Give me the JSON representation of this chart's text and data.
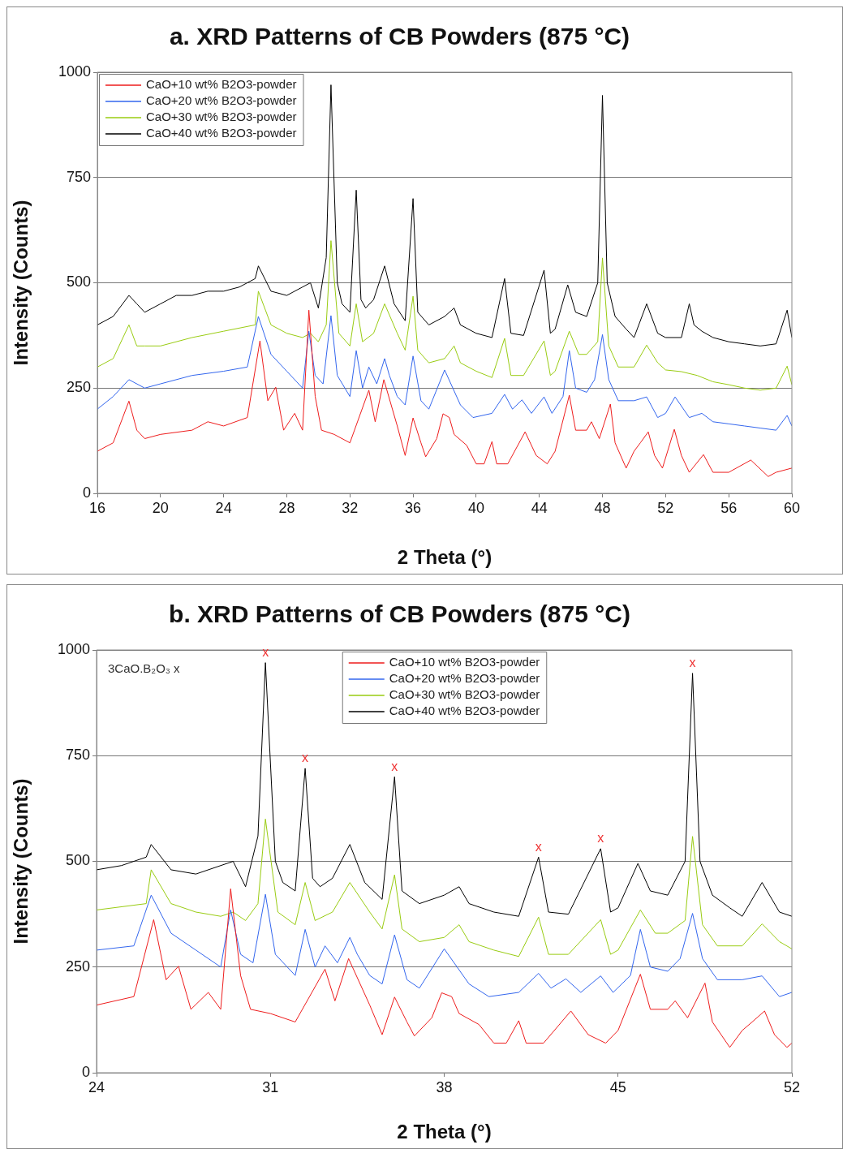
{
  "chart_data": [
    {
      "type": "line",
      "title": "a. XRD Patterns of CB Powders (875 °C)",
      "xlabel": "2 Theta (°)",
      "ylabel": "Intensity (Counts)",
      "xlim": [
        16,
        60
      ],
      "xticks": [
        16,
        20,
        24,
        28,
        32,
        36,
        40,
        44,
        48,
        52,
        56,
        60
      ],
      "ylim": [
        0,
        1000
      ],
      "yticks": [
        0,
        250,
        500,
        750,
        1000
      ],
      "grid": "y",
      "legend": "top left",
      "marker": "none",
      "series": [
        {
          "name": "CaO+10 wt% B2O3-powder",
          "color": "#ee1c1c",
          "x": [
            16,
            17,
            18,
            18.5,
            19,
            20,
            22,
            23,
            24,
            25.5,
            26.3,
            26.8,
            27.3,
            27.8,
            28.5,
            29,
            29.4,
            29.8,
            30.2,
            31,
            32,
            33.2,
            33.6,
            34.15,
            35,
            35.5,
            36,
            36.5,
            36.8,
            37.5,
            37.9,
            38.3,
            38.6,
            39.4,
            40,
            40.5,
            41,
            41.3,
            42,
            43.1,
            43.8,
            44.5,
            45,
            45.9,
            46.3,
            47,
            47.3,
            47.8,
            48.5,
            48.8,
            49.5,
            50,
            50.4,
            50.9,
            51.3,
            51.8,
            52.55,
            53,
            53.5,
            54.4,
            55,
            56,
            57.4,
            58.5,
            59,
            60
          ],
          "values": [
            100,
            120,
            219,
            150,
            130,
            140,
            150,
            170,
            160,
            180,
            362,
            220,
            252,
            150,
            190,
            150,
            435,
            230,
            150,
            140,
            120,
            245,
            170,
            270,
            160,
            90,
            179,
            120,
            87,
            130,
            189,
            180,
            140,
            114,
            70,
            70,
            123,
            70,
            70,
            146,
            90,
            70,
            100,
            233,
            150,
            150,
            170,
            130,
            212,
            120,
            60,
            100,
            120,
            146,
            90,
            60,
            152,
            90,
            50,
            92,
            50,
            50,
            79,
            40,
            50,
            60
          ]
        },
        {
          "name": "CaO+20 wt% B2O3-powder",
          "color": "#3366ee",
          "x": [
            16,
            17,
            18,
            19,
            20,
            22,
            24,
            25.5,
            26.2,
            27,
            28,
            29,
            29.4,
            29.8,
            30.3,
            30.8,
            31.2,
            32,
            32.4,
            32.8,
            33.2,
            33.7,
            34.2,
            34.5,
            35,
            35.5,
            36,
            36.5,
            37,
            38,
            39,
            39.8,
            41,
            41.8,
            42.3,
            42.9,
            43.5,
            44.3,
            44.8,
            45.5,
            45.9,
            46.3,
            47,
            47.5,
            48,
            48.4,
            49,
            50,
            50.8,
            51.5,
            52,
            52.6,
            53.5,
            54.3,
            55,
            56,
            57,
            58,
            59,
            59.7,
            60
          ],
          "values": [
            200,
            230,
            270,
            250,
            260,
            280,
            290,
            300,
            420,
            330,
            290,
            250,
            385,
            280,
            260,
            422,
            280,
            230,
            339,
            250,
            300,
            260,
            320,
            280,
            230,
            210,
            326,
            220,
            200,
            293,
            210,
            180,
            190,
            235,
            200,
            222,
            190,
            229,
            190,
            230,
            339,
            250,
            240,
            270,
            377,
            270,
            220,
            220,
            229,
            180,
            190,
            229,
            180,
            190,
            170,
            165,
            160,
            155,
            150,
            185,
            160
          ]
        },
        {
          "name": "CaO+30 wt% B2O3-powder",
          "color": "#99cc11",
          "x": [
            16,
            17,
            18,
            18.5,
            19,
            20,
            22,
            24,
            26,
            26.2,
            27,
            28,
            29,
            29.5,
            30,
            30.5,
            30.8,
            31.3,
            32,
            32.4,
            32.8,
            33.5,
            34.2,
            35,
            35.5,
            36,
            36.3,
            37,
            38,
            38.6,
            39,
            40,
            41,
            41.8,
            42.2,
            43,
            44.3,
            44.7,
            45,
            45.9,
            46.5,
            47,
            47.7,
            48,
            48.4,
            49,
            50,
            50.8,
            51.5,
            52,
            53,
            54,
            55,
            56,
            57,
            58,
            59,
            59.7,
            60
          ],
          "values": [
            300,
            320,
            400,
            350,
            350,
            350,
            370,
            385,
            400,
            480,
            400,
            380,
            370,
            380,
            360,
            400,
            600,
            380,
            350,
            450,
            360,
            380,
            450,
            380,
            340,
            468,
            340,
            310,
            320,
            350,
            310,
            290,
            275,
            368,
            280,
            280,
            362,
            280,
            290,
            385,
            330,
            330,
            360,
            559,
            350,
            300,
            300,
            352,
            310,
            293,
            289,
            280,
            265,
            258,
            250,
            245,
            250,
            302,
            258
          ]
        },
        {
          "name": "CaO+40 wt% B2O3-powder",
          "color": "#000000",
          "x": [
            16,
            17,
            18,
            18.5,
            19,
            20,
            21,
            22,
            23,
            24,
            25,
            26,
            26.2,
            27,
            28,
            29,
            29.5,
            30,
            30.5,
            30.8,
            31.2,
            31.5,
            32,
            32.4,
            32.7,
            33,
            33.5,
            34.2,
            34.8,
            35.5,
            36,
            36.3,
            37,
            38,
            38.6,
            39,
            40,
            41,
            41.8,
            42.2,
            43,
            44.3,
            44.7,
            45,
            45.8,
            46.3,
            47,
            47.7,
            48,
            48.3,
            48.8,
            49.5,
            50,
            50.8,
            51.5,
            52,
            53,
            53.5,
            53.8,
            54.3,
            55,
            56,
            57,
            58,
            59,
            59.7,
            60
          ],
          "values": [
            400,
            420,
            470,
            450,
            430,
            450,
            470,
            470,
            480,
            480,
            490,
            510,
            540,
            480,
            470,
            490,
            500,
            440,
            560,
            970,
            500,
            450,
            430,
            720,
            460,
            440,
            460,
            540,
            450,
            410,
            700,
            430,
            400,
            420,
            440,
            400,
            380,
            370,
            510,
            380,
            375,
            530,
            380,
            390,
            495,
            430,
            420,
            500,
            945,
            500,
            420,
            390,
            370,
            450,
            380,
            370,
            370,
            450,
            400,
            385,
            370,
            360,
            355,
            350,
            355,
            435,
            370
          ]
        }
      ]
    },
    {
      "type": "line",
      "title": "b. XRD Patterns of CB Powders (875 °C)",
      "xlabel": "2 Theta (°)",
      "ylabel": "Intensity (Counts)",
      "xlim": [
        24,
        52
      ],
      "xticks": [
        24,
        31,
        38,
        45,
        52
      ],
      "ylim": [
        0,
        1000
      ],
      "yticks": [
        0,
        250,
        500,
        750,
        1000
      ],
      "grid": "y",
      "legend": "top",
      "marker": "none",
      "annotations": [
        "3CaO.B₂O₃ x",
        {
          "text": "x",
          "x": 30.8,
          "y": 970
        },
        {
          "text": "x",
          "x": 32.4,
          "y": 720
        },
        {
          "text": "x",
          "x": 36,
          "y": 700
        },
        {
          "text": "x",
          "x": 41.8,
          "y": 510
        },
        {
          "text": "x",
          "x": 44.3,
          "y": 530
        },
        {
          "text": "x",
          "x": 48,
          "y": 945
        }
      ],
      "series": [
        {
          "name": "CaO+10 wt% B2O3-powder",
          "color": "#ee1c1c",
          "x": [
            24,
            25.5,
            26.3,
            26.8,
            27.3,
            27.8,
            28.5,
            29,
            29.4,
            29.8,
            30.2,
            31,
            32,
            33.2,
            33.6,
            34.15,
            35,
            35.5,
            36,
            36.5,
            36.8,
            37.5,
            37.9,
            38.3,
            38.6,
            39.4,
            40,
            40.5,
            41,
            41.3,
            42,
            43.1,
            43.8,
            44.5,
            45,
            45.9,
            46.3,
            47,
            47.3,
            47.8,
            48.5,
            48.8,
            49.5,
            50,
            50.4,
            50.9,
            51.3,
            51.8,
            52
          ],
          "values": [
            160,
            180,
            362,
            220,
            252,
            150,
            190,
            150,
            435,
            230,
            150,
            140,
            120,
            245,
            170,
            270,
            160,
            90,
            179,
            120,
            87,
            130,
            189,
            180,
            140,
            114,
            70,
            70,
            123,
            70,
            70,
            146,
            90,
            70,
            100,
            233,
            150,
            150,
            170,
            130,
            212,
            120,
            60,
            100,
            120,
            146,
            90,
            60,
            70
          ]
        },
        {
          "name": "CaO+20 wt% B2O3-powder",
          "color": "#3366ee",
          "x": [
            24,
            25.5,
            26.2,
            27,
            28,
            29,
            29.4,
            29.8,
            30.3,
            30.8,
            31.2,
            32,
            32.4,
            32.8,
            33.2,
            33.7,
            34.2,
            34.5,
            35,
            35.5,
            36,
            36.5,
            37,
            38,
            39,
            39.8,
            41,
            41.8,
            42.3,
            42.9,
            43.5,
            44.3,
            44.8,
            45.5,
            45.9,
            46.3,
            47,
            47.5,
            48,
            48.4,
            49,
            50,
            50.8,
            51.5,
            52
          ],
          "values": [
            290,
            300,
            420,
            330,
            290,
            250,
            385,
            280,
            260,
            422,
            280,
            230,
            339,
            250,
            300,
            260,
            320,
            280,
            230,
            210,
            326,
            220,
            200,
            293,
            210,
            180,
            190,
            235,
            200,
            222,
            190,
            229,
            190,
            230,
            339,
            250,
            240,
            270,
            377,
            270,
            220,
            220,
            229,
            180,
            190
          ]
        },
        {
          "name": "CaO+30 wt% B2O3-powder",
          "color": "#99cc11",
          "x": [
            24,
            26,
            26.2,
            27,
            28,
            29,
            29.5,
            30,
            30.5,
            30.8,
            31.3,
            32,
            32.4,
            32.8,
            33.5,
            34.2,
            35,
            35.5,
            36,
            36.3,
            37,
            38,
            38.6,
            39,
            40,
            41,
            41.8,
            42.2,
            43,
            44.3,
            44.7,
            45,
            45.9,
            46.5,
            47,
            47.7,
            48,
            48.4,
            49,
            50,
            50.8,
            51.5,
            52
          ],
          "values": [
            385,
            400,
            480,
            400,
            380,
            370,
            380,
            360,
            400,
            600,
            380,
            350,
            450,
            360,
            380,
            450,
            380,
            340,
            468,
            340,
            310,
            320,
            350,
            310,
            290,
            275,
            368,
            280,
            280,
            362,
            280,
            290,
            385,
            330,
            330,
            360,
            559,
            350,
            300,
            300,
            352,
            310,
            293
          ]
        },
        {
          "name": "CaO+40 wt% B2O3-powder",
          "color": "#000000",
          "x": [
            24,
            25,
            26,
            26.2,
            27,
            28,
            29,
            29.5,
            30,
            30.5,
            30.8,
            31.2,
            31.5,
            32,
            32.4,
            32.7,
            33,
            33.5,
            34.2,
            34.8,
            35.5,
            36,
            36.3,
            37,
            38,
            38.6,
            39,
            40,
            41,
            41.8,
            42.2,
            43,
            44.3,
            44.7,
            45,
            45.8,
            46.3,
            47,
            47.7,
            48,
            48.3,
            48.8,
            49.5,
            50,
            50.8,
            51.5,
            52
          ],
          "values": [
            480,
            490,
            510,
            540,
            480,
            470,
            490,
            500,
            440,
            560,
            970,
            500,
            450,
            430,
            720,
            460,
            440,
            460,
            540,
            450,
            410,
            700,
            430,
            400,
            420,
            440,
            400,
            380,
            370,
            510,
            380,
            375,
            530,
            380,
            390,
            495,
            430,
            420,
            500,
            945,
            500,
            420,
            390,
            370,
            450,
            380,
            370
          ]
        }
      ]
    }
  ]
}
